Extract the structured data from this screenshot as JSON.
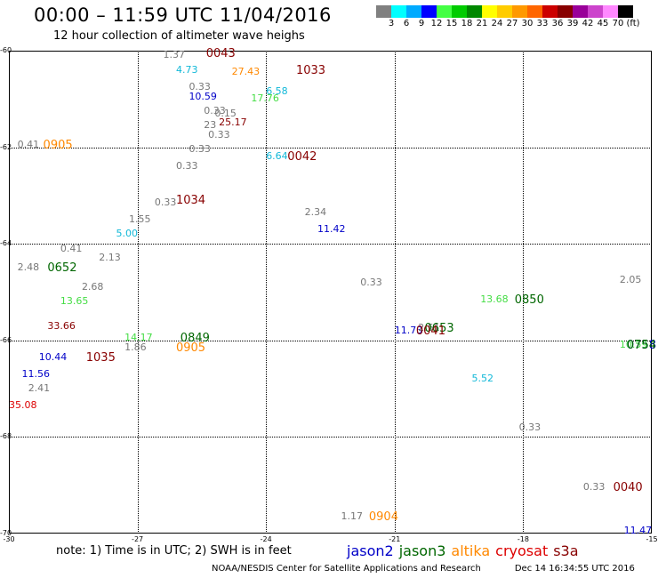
{
  "header": {
    "title": "00:00 – 11:59 UTC 11/04/2016",
    "subtitle": "12 hour collection of altimeter wave heighs"
  },
  "colorbar": {
    "colors": [
      "#808080",
      "#00ffff",
      "#00aaff",
      "#0000ff",
      "#44ff44",
      "#00cc00",
      "#008800",
      "#ffff00",
      "#ffcc00",
      "#ff9900",
      "#ff6600",
      "#cc0000",
      "#880000",
      "#990099",
      "#cc44cc",
      "#ff88ff",
      "#000000"
    ],
    "labels": [
      "3",
      "6",
      "9",
      "12",
      "15",
      "18",
      "21",
      "24",
      "27",
      "30",
      "33",
      "36",
      "39",
      "42",
      "45",
      "70",
      "(ft)"
    ]
  },
  "axes": {
    "y_ticks": [
      "-60",
      "-62",
      "-64",
      "-66",
      "-68",
      "-70"
    ],
    "x_ticks": [
      "-30",
      "-27",
      "-24",
      "-21",
      "-18",
      "-15"
    ]
  },
  "colors": {
    "gray": "#777777",
    "cyan": "#11b8d8",
    "blue": "#0000c8",
    "lightgreen": "#44dd44",
    "green": "#006600",
    "orange": "#ff8800",
    "darkred": "#880000",
    "red": "#dd0000"
  },
  "chart_data": {
    "type": "scatter",
    "title": "00:00 – 11:59 UTC 11/04/2016",
    "subtitle": "12 hour collection of altimeter wave heighs",
    "x_axis": {
      "ticks": [
        -30,
        -27,
        -24,
        -21,
        -18,
        -15
      ],
      "range": [
        -30,
        -15
      ]
    },
    "y_axis": {
      "ticks": [
        -60,
        -62,
        -64,
        -66,
        -68,
        -70
      ],
      "range": [
        -60,
        -70
      ]
    },
    "wave_heights_ft": [
      {
        "text": "1.37",
        "x": -26.4,
        "y": -60.1,
        "c": "gray"
      },
      {
        "text": "4.73",
        "x": -26.1,
        "y": -60.4,
        "c": "cyan"
      },
      {
        "text": "27.43",
        "x": -24.8,
        "y": -60.45,
        "c": "orange"
      },
      {
        "text": "0.33",
        "x": -25.8,
        "y": -60.75,
        "c": "gray"
      },
      {
        "text": "6.58",
        "x": -24.0,
        "y": -60.85,
        "c": "cyan"
      },
      {
        "text": "10.59",
        "x": -25.8,
        "y": -60.95,
        "c": "blue"
      },
      {
        "text": "17.76",
        "x": -24.35,
        "y": -61.0,
        "c": "lightgreen"
      },
      {
        "text": "0.33",
        "x": -25.45,
        "y": -61.25,
        "c": "gray"
      },
      {
        "text": "0.15",
        "x": -25.2,
        "y": -61.3,
        "c": "gray"
      },
      {
        "text": "25.17",
        "x": -25.1,
        "y": -61.5,
        "c": "darkred"
      },
      {
        "text": "23",
        "x": -25.45,
        "y": -61.55,
        "c": "gray"
      },
      {
        "text": "0.33",
        "x": -25.35,
        "y": -61.75,
        "c": "gray"
      },
      {
        "text": "0.41",
        "x": -29.8,
        "y": -61.95,
        "c": "gray"
      },
      {
        "text": "0.33",
        "x": -25.8,
        "y": -62.05,
        "c": "gray"
      },
      {
        "text": "6.64",
        "x": -24.0,
        "y": -62.2,
        "c": "cyan"
      },
      {
        "text": "0.33",
        "x": -26.1,
        "y": -62.4,
        "c": "gray"
      },
      {
        "text": "0.33",
        "x": -26.6,
        "y": -63.15,
        "c": "gray"
      },
      {
        "text": "2.34",
        "x": -23.1,
        "y": -63.35,
        "c": "gray"
      },
      {
        "text": "1.55",
        "x": -27.2,
        "y": -63.5,
        "c": "gray"
      },
      {
        "text": "5.00",
        "x": -27.5,
        "y": -63.8,
        "c": "cyan"
      },
      {
        "text": "11.42",
        "x": -22.8,
        "y": -63.7,
        "c": "blue"
      },
      {
        "text": "0.41",
        "x": -28.8,
        "y": -64.1,
        "c": "gray"
      },
      {
        "text": "2.13",
        "x": -27.9,
        "y": -64.3,
        "c": "gray"
      },
      {
        "text": "2.48",
        "x": -29.8,
        "y": -64.5,
        "c": "gray"
      },
      {
        "text": "0.33",
        "x": -21.8,
        "y": -64.8,
        "c": "gray"
      },
      {
        "text": "2.05",
        "x": -15.75,
        "y": -64.75,
        "c": "gray"
      },
      {
        "text": "2.68",
        "x": -28.3,
        "y": -64.9,
        "c": "gray"
      },
      {
        "text": "13.68",
        "x": -19.0,
        "y": -65.15,
        "c": "lightgreen"
      },
      {
        "text": "13.65",
        "x": -28.8,
        "y": -65.2,
        "c": "lightgreen"
      },
      {
        "text": "33.66",
        "x": -29.1,
        "y": -65.7,
        "c": "darkred"
      },
      {
        "text": "11.73",
        "x": -21.0,
        "y": -65.8,
        "c": "blue"
      },
      {
        "text": "2.51",
        "x": -20.45,
        "y": -65.75,
        "c": "gray"
      },
      {
        "text": "14.17",
        "x": -27.3,
        "y": -65.95,
        "c": "lightgreen"
      },
      {
        "text": "1.86",
        "x": -27.3,
        "y": -66.15,
        "c": "gray"
      },
      {
        "text": "10.59",
        "x": -15.75,
        "y": -66.1,
        "c": "lightgreen"
      },
      {
        "text": "10.44",
        "x": -29.3,
        "y": -66.35,
        "c": "blue"
      },
      {
        "text": "11.56",
        "x": -29.7,
        "y": -66.7,
        "c": "blue"
      },
      {
        "text": "5.52",
        "x": -19.2,
        "y": -66.8,
        "c": "cyan"
      },
      {
        "text": "2.41",
        "x": -29.55,
        "y": -67.0,
        "c": "gray"
      },
      {
        "text": "35.08",
        "x": -30.0,
        "y": -67.35,
        "c": "red"
      },
      {
        "text": "0.33",
        "x": -18.1,
        "y": -67.8,
        "c": "gray"
      },
      {
        "text": "0.33",
        "x": -16.6,
        "y": -69.05,
        "c": "gray"
      },
      {
        "text": "1.17",
        "x": -22.25,
        "y": -69.65,
        "c": "gray"
      },
      {
        "text": "11.47",
        "x": -15.65,
        "y": -69.95,
        "c": "blue"
      }
    ],
    "pass_times_utc": [
      {
        "text": "0043",
        "x": -25.4,
        "y": -60.05,
        "c": "darkred"
      },
      {
        "text": "1033",
        "x": -23.3,
        "y": -60.4,
        "c": "darkred"
      },
      {
        "text": "0905",
        "x": -29.2,
        "y": -61.95,
        "c": "orange"
      },
      {
        "text": "0042",
        "x": -23.5,
        "y": -62.2,
        "c": "darkred"
      },
      {
        "text": "1034",
        "x": -26.1,
        "y": -63.1,
        "c": "darkred"
      },
      {
        "text": "0652",
        "x": -29.1,
        "y": -64.5,
        "c": "green"
      },
      {
        "text": "0850",
        "x": -18.2,
        "y": -65.15,
        "c": "green"
      },
      {
        "text": "0653",
        "x": -20.3,
        "y": -65.75,
        "c": "green"
      },
      {
        "text": "0041",
        "x": -20.5,
        "y": -65.8,
        "c": "darkred"
      },
      {
        "text": "0849",
        "x": -26.0,
        "y": -65.95,
        "c": "green"
      },
      {
        "text": "0905",
        "x": -26.1,
        "y": -66.15,
        "c": "orange"
      },
      {
        "text": "0758",
        "x": -15.2,
        "y": -66.1,
        "c": "blue"
      },
      {
        "text": "0754",
        "x": -15.2,
        "y": -66.1,
        "c": "green"
      },
      {
        "text": "1035",
        "x": -28.2,
        "y": -66.35,
        "c": "darkred"
      },
      {
        "text": "0040",
        "x": -15.9,
        "y": -69.05,
        "c": "darkred"
      },
      {
        "text": "0904",
        "x": -21.6,
        "y": -69.65,
        "c": "orange"
      }
    ]
  },
  "note": "note: 1) Time is in UTC; 2) SWH is in feet",
  "legend": [
    {
      "label": "jason2",
      "c": "blue"
    },
    {
      "label": "jason3",
      "c": "green"
    },
    {
      "label": "altika",
      "c": "orange"
    },
    {
      "label": "cryosat",
      "c": "red"
    },
    {
      "label": "s3a",
      "c": "darkred"
    }
  ],
  "footer": {
    "credit": "NOAA/NESDIS Center for Satellite Applications and Research",
    "date": "Dec 14 16:34:55 UTC 2016"
  }
}
